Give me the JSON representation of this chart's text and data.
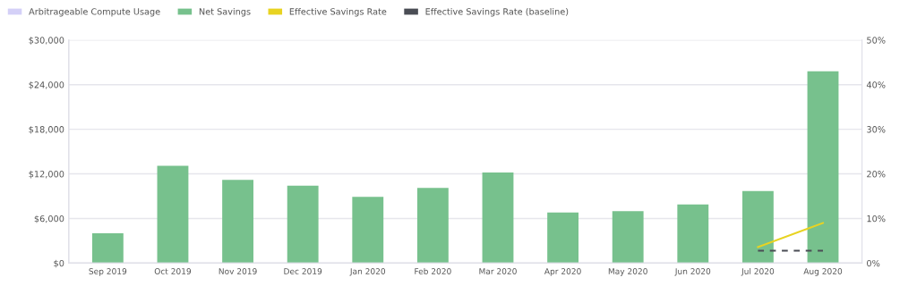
{
  "chart_data": {
    "type": "bar",
    "categories": [
      "Sep 2019",
      "Oct 2019",
      "Nov 2019",
      "Dec 2019",
      "Jan 2020",
      "Feb 2020",
      "Mar 2020",
      "Apr 2020",
      "May 2020",
      "Jun 2020",
      "Jul 2020",
      "Aug 2020"
    ],
    "series": [
      {
        "name": "Arbitrageable Compute Usage",
        "color": "#d4d0f7",
        "values": [
          null,
          null,
          null,
          null,
          null,
          null,
          null,
          null,
          null,
          null,
          null,
          null
        ]
      },
      {
        "name": "Net Savings",
        "color": "#77c18d",
        "values": [
          4000,
          13100,
          11200,
          10400,
          8900,
          10100,
          12200,
          6800,
          7000,
          7900,
          9700,
          25800
        ]
      },
      {
        "name": "Effective Savings Rate",
        "type": "line",
        "axis": "y2",
        "color": "#e8d321",
        "line_style": "solid",
        "values": [
          null,
          null,
          null,
          null,
          null,
          null,
          null,
          null,
          null,
          null,
          3.6,
          9.0
        ]
      },
      {
        "name": "Effective Savings Rate (baseline)",
        "type": "line",
        "axis": "y2",
        "color": "#4a4d55",
        "line_style": "dashed",
        "values": [
          null,
          null,
          null,
          null,
          null,
          null,
          null,
          null,
          null,
          null,
          2.8,
          2.8
        ]
      }
    ],
    "ylim": [
      0,
      30000
    ],
    "yticks": [
      {
        "value": 0,
        "label": "$0"
      },
      {
        "value": 6000,
        "label": "$6,000"
      },
      {
        "value": 12000,
        "label": "$12,000"
      },
      {
        "value": 18000,
        "label": "$18,000"
      },
      {
        "value": 24000,
        "label": "$24,000"
      },
      {
        "value": 30000,
        "label": "$30,000"
      }
    ],
    "y2lim": [
      0,
      50
    ],
    "y2ticks": [
      {
        "value": 0,
        "label": "0%"
      },
      {
        "value": 10,
        "label": "10%"
      },
      {
        "value": 20,
        "label": "20%"
      },
      {
        "value": 30,
        "label": "30%"
      },
      {
        "value": 40,
        "label": "40%"
      },
      {
        "value": 50,
        "label": "50%"
      }
    ],
    "grid": "y",
    "legend": "top left",
    "marker": "none"
  }
}
